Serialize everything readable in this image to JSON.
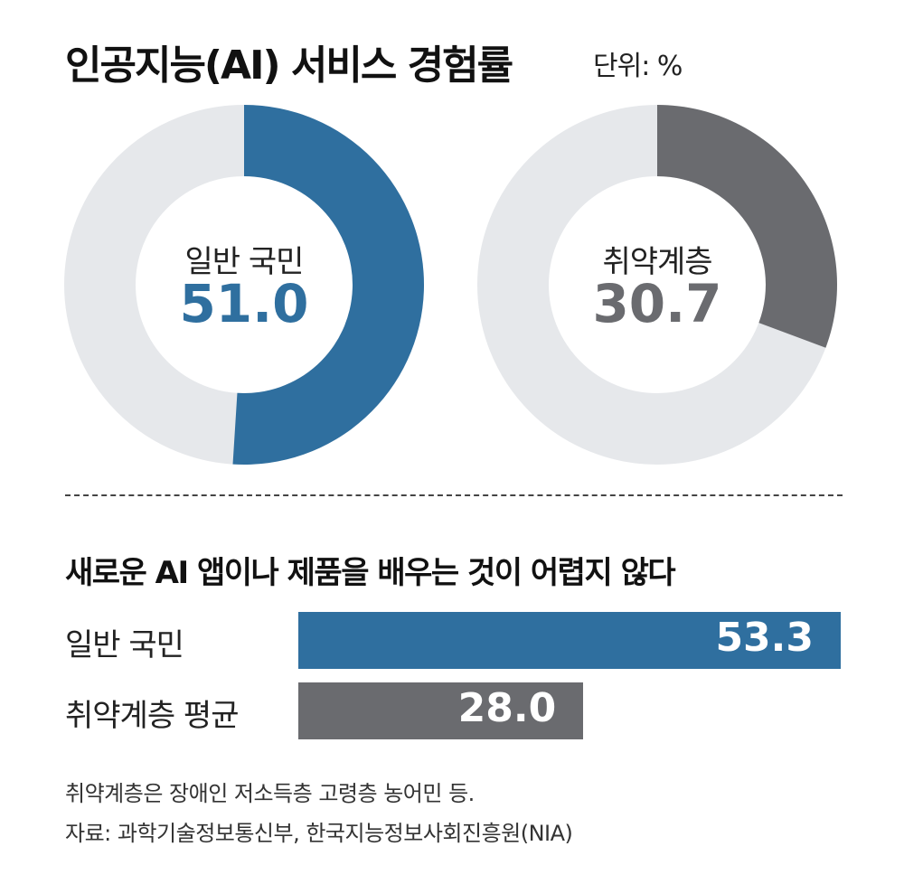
{
  "title": "인공지능(AI) 서비스 경험률",
  "unit": "단위: %",
  "colors": {
    "blue": "#2f6f9f",
    "gray": "#6a6b6f",
    "track": "#e6e8eb"
  },
  "chart_data": [
    {
      "type": "pie",
      "variant": "donut",
      "title": "인공지능(AI) 서비스 경험률",
      "unit": "%",
      "slices": [
        {
          "label": "일반 국민",
          "value": 51.0,
          "display": "51.0",
          "color": "#2f6f9f"
        },
        {
          "label": "취약계층",
          "value": 30.7,
          "display": "30.7",
          "color": "#6a6b6f"
        }
      ],
      "max": 100
    },
    {
      "type": "bar",
      "orientation": "horizontal",
      "title": "새로운 AI 앱이나 제품을 배우는 것이 어렵지 않다",
      "categories": [
        "일반 국민",
        "취약계층 평균"
      ],
      "values": [
        53.3,
        28.0
      ],
      "display": [
        "53.3",
        "28.0"
      ],
      "colors": [
        "#2f6f9f",
        "#6a6b6f"
      ]
    }
  ],
  "notes": [
    "취약계층은 장애인 저소득층 고령층 농어민 등.",
    "자료: 과학기술정보통신부, 한국지능정보사회진흥원(NIA)"
  ]
}
